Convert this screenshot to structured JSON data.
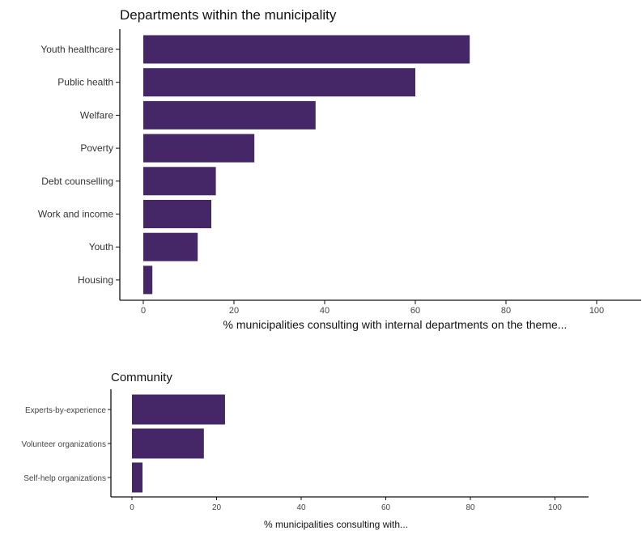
{
  "chart_data": [
    {
      "type": "bar",
      "orientation": "horizontal",
      "title": "Departments within the municipality",
      "xlabel": "% municipalities consulting with internal departments on the theme...",
      "ylabel": "",
      "categories": [
        "Youth healthcare",
        "Public health",
        "Welfare",
        "Poverty",
        "Debt counselling",
        "Work and income",
        "Youth",
        "Housing"
      ],
      "values": [
        72,
        60,
        38,
        24.5,
        16,
        15,
        12,
        2
      ],
      "xlim": [
        0,
        105
      ],
      "xticks": [
        0,
        20,
        40,
        60,
        80,
        100
      ],
      "grid": false,
      "bar_color": "#452767"
    },
    {
      "type": "bar",
      "orientation": "horizontal",
      "title": "Community",
      "xlabel": "% municipalities consulting with...",
      "ylabel": "",
      "categories": [
        "Experts-by-experience",
        "Volunteer organizations",
        "Self-help organizations"
      ],
      "values": [
        22,
        17,
        2.5
      ],
      "xlim": [
        0,
        105
      ],
      "xticks": [
        0,
        20,
        40,
        60,
        80,
        100
      ],
      "grid": false,
      "bar_color": "#452767"
    }
  ]
}
